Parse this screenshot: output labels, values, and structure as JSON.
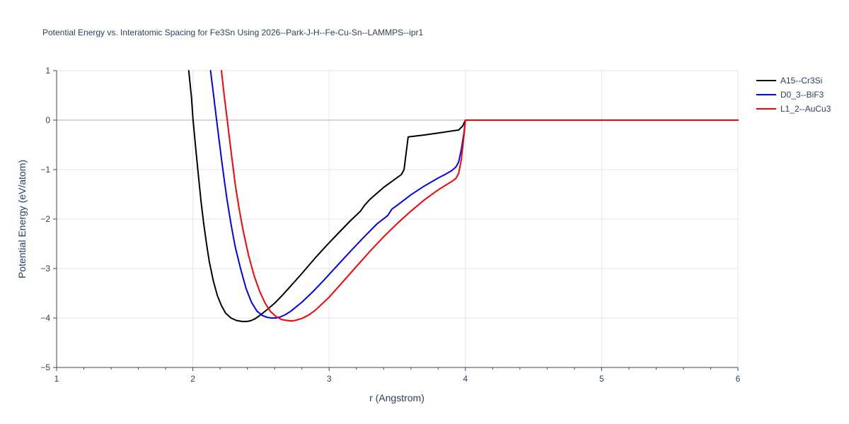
{
  "chart_data": {
    "type": "line",
    "title": "Potential Energy vs. Interatomic Spacing for Fe3Sn Using 2026--Park-J-H--Fe-Cu-Sn--LAMMPS--ipr1",
    "xlabel": "r (Angstrom)",
    "ylabel": "Potential Energy (eV/atom)",
    "xlim": [
      1,
      6
    ],
    "ylim": [
      -5,
      1
    ],
    "x_ticks": [
      1,
      2,
      3,
      4,
      5,
      6
    ],
    "y_ticks": [
      1,
      0,
      -1,
      -2,
      -3,
      -4,
      -5
    ],
    "x_tick_labels": [
      "1",
      "2",
      "3",
      "4",
      "5",
      "6"
    ],
    "y_tick_labels": [
      "1",
      "0",
      "−1",
      "−2",
      "−3",
      "−4",
      "−5"
    ],
    "grid": true,
    "legend_position": "top-right",
    "series": [
      {
        "name": "A15--Cr3Si",
        "color": "#000000",
        "x": [
          1.97,
          1.99,
          2.0,
          2.02,
          2.04,
          2.06,
          2.08,
          2.1,
          2.12,
          2.15,
          2.18,
          2.21,
          2.24,
          2.28,
          2.32,
          2.36,
          2.4,
          2.43,
          2.46,
          2.5,
          2.55,
          2.6,
          2.65,
          2.7,
          2.8,
          2.9,
          3.0,
          3.08,
          3.15,
          3.2,
          3.23,
          3.26,
          3.3,
          3.35,
          3.4,
          3.45,
          3.5,
          3.53,
          3.55,
          3.58,
          3.7,
          3.8,
          3.9,
          3.95,
          3.98,
          4.0,
          4.5,
          5.0,
          5.5,
          6.0
        ],
        "y": [
          1.0,
          0.45,
          0.05,
          -0.55,
          -1.1,
          -1.65,
          -2.1,
          -2.5,
          -2.85,
          -3.25,
          -3.55,
          -3.75,
          -3.9,
          -4.0,
          -4.05,
          -4.07,
          -4.07,
          -4.05,
          -4.01,
          -3.93,
          -3.82,
          -3.7,
          -3.56,
          -3.41,
          -3.1,
          -2.78,
          -2.48,
          -2.25,
          -2.05,
          -1.92,
          -1.84,
          -1.72,
          -1.6,
          -1.48,
          -1.36,
          -1.26,
          -1.16,
          -1.1,
          -1.0,
          -0.34,
          -0.3,
          -0.26,
          -0.22,
          -0.2,
          -0.12,
          0.0,
          0.0,
          0.0,
          0.0,
          0.0
        ]
      },
      {
        "name": "D0_3--BiF3",
        "color": "#0000ff",
        "x": [
          2.13,
          2.15,
          2.17,
          2.19,
          2.21,
          2.23,
          2.25,
          2.28,
          2.31,
          2.35,
          2.39,
          2.43,
          2.47,
          2.51,
          2.55,
          2.58,
          2.61,
          2.64,
          2.68,
          2.72,
          2.8,
          2.88,
          2.96,
          3.05,
          3.15,
          3.25,
          3.35,
          3.43,
          3.46,
          3.5,
          3.6,
          3.7,
          3.8,
          3.85,
          3.9,
          3.93,
          3.95,
          3.97,
          3.99,
          4.0,
          4.5,
          5.0,
          5.5,
          6.0
        ],
        "y": [
          1.0,
          0.55,
          0.1,
          -0.35,
          -0.78,
          -1.2,
          -1.6,
          -2.1,
          -2.55,
          -3.0,
          -3.4,
          -3.68,
          -3.86,
          -3.95,
          -3.99,
          -4.0,
          -4.0,
          -3.98,
          -3.93,
          -3.86,
          -3.68,
          -3.47,
          -3.24,
          -2.97,
          -2.67,
          -2.38,
          -2.1,
          -1.93,
          -1.8,
          -1.72,
          -1.51,
          -1.33,
          -1.17,
          -1.1,
          -1.02,
          -0.95,
          -0.85,
          -0.6,
          -0.25,
          0.0,
          0.0,
          0.0,
          0.0,
          0.0
        ]
      },
      {
        "name": "L1_2--AuCu3",
        "color": "#ff0000",
        "x": [
          2.21,
          2.23,
          2.25,
          2.27,
          2.29,
          2.31,
          2.34,
          2.37,
          2.41,
          2.45,
          2.49,
          2.53,
          2.57,
          2.61,
          2.65,
          2.69,
          2.72,
          2.75,
          2.8,
          2.85,
          2.9,
          3.0,
          3.1,
          3.2,
          3.3,
          3.4,
          3.5,
          3.6,
          3.7,
          3.8,
          3.9,
          3.93,
          3.95,
          3.97,
          3.99,
          4.0,
          4.5,
          5.0,
          5.5,
          6.0
        ],
        "y": [
          1.0,
          0.5,
          0.05,
          -0.4,
          -0.85,
          -1.28,
          -1.8,
          -2.25,
          -2.75,
          -3.15,
          -3.46,
          -3.7,
          -3.87,
          -3.97,
          -4.03,
          -4.05,
          -4.06,
          -4.05,
          -4.01,
          -3.94,
          -3.84,
          -3.58,
          -3.27,
          -2.96,
          -2.65,
          -2.36,
          -2.09,
          -1.84,
          -1.61,
          -1.41,
          -1.24,
          -1.18,
          -1.08,
          -0.8,
          -0.3,
          0.0,
          0.0,
          0.0,
          0.0,
          0.0
        ]
      }
    ]
  }
}
